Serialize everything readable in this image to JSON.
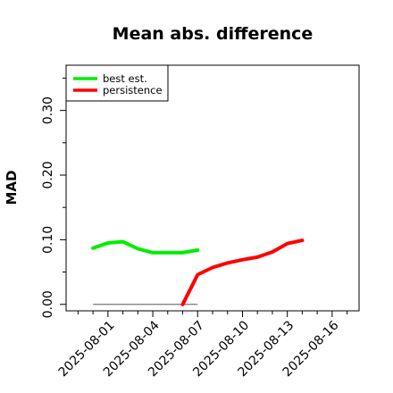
{
  "chart_data": {
    "type": "line",
    "title": "Mean abs. difference",
    "xlabel": "",
    "ylabel": "MAD",
    "ylim": [
      -0.01,
      0.37
    ],
    "yticks": [
      0.0,
      0.1,
      0.2,
      0.3
    ],
    "ytick_labels": [
      "0.00",
      "0.10",
      "0.20",
      "0.30"
    ],
    "x_tick_labels": [
      "2025-08-01",
      "2025-08-04",
      "2025-08-07",
      "2025-08-10",
      "2025-08-13",
      "2025-08-16"
    ],
    "x_ticks_day": [
      1,
      4,
      7,
      10,
      13,
      16
    ],
    "xlim_day": [
      -1.8,
      17.8
    ],
    "legend_position": "top-left",
    "grid": false,
    "series": [
      {
        "name": "best est.",
        "color": "#00ee00",
        "x_day": [
          0,
          1,
          2,
          3,
          4,
          5,
          6,
          7
        ],
        "y": [
          0.087,
          0.095,
          0.097,
          0.086,
          0.08,
          0.08,
          0.08,
          0.084
        ]
      },
      {
        "name": "persistence",
        "color": "#ff0000",
        "x_day": [
          6,
          7,
          8,
          9,
          10,
          11,
          12,
          13,
          14
        ],
        "y": [
          0.0,
          0.046,
          0.057,
          0.064,
          0.069,
          0.073,
          0.081,
          0.094,
          0.099
        ]
      }
    ],
    "reference_line": {
      "x_day": [
        0,
        7
      ],
      "y": 0.0,
      "color": "#777777"
    }
  }
}
